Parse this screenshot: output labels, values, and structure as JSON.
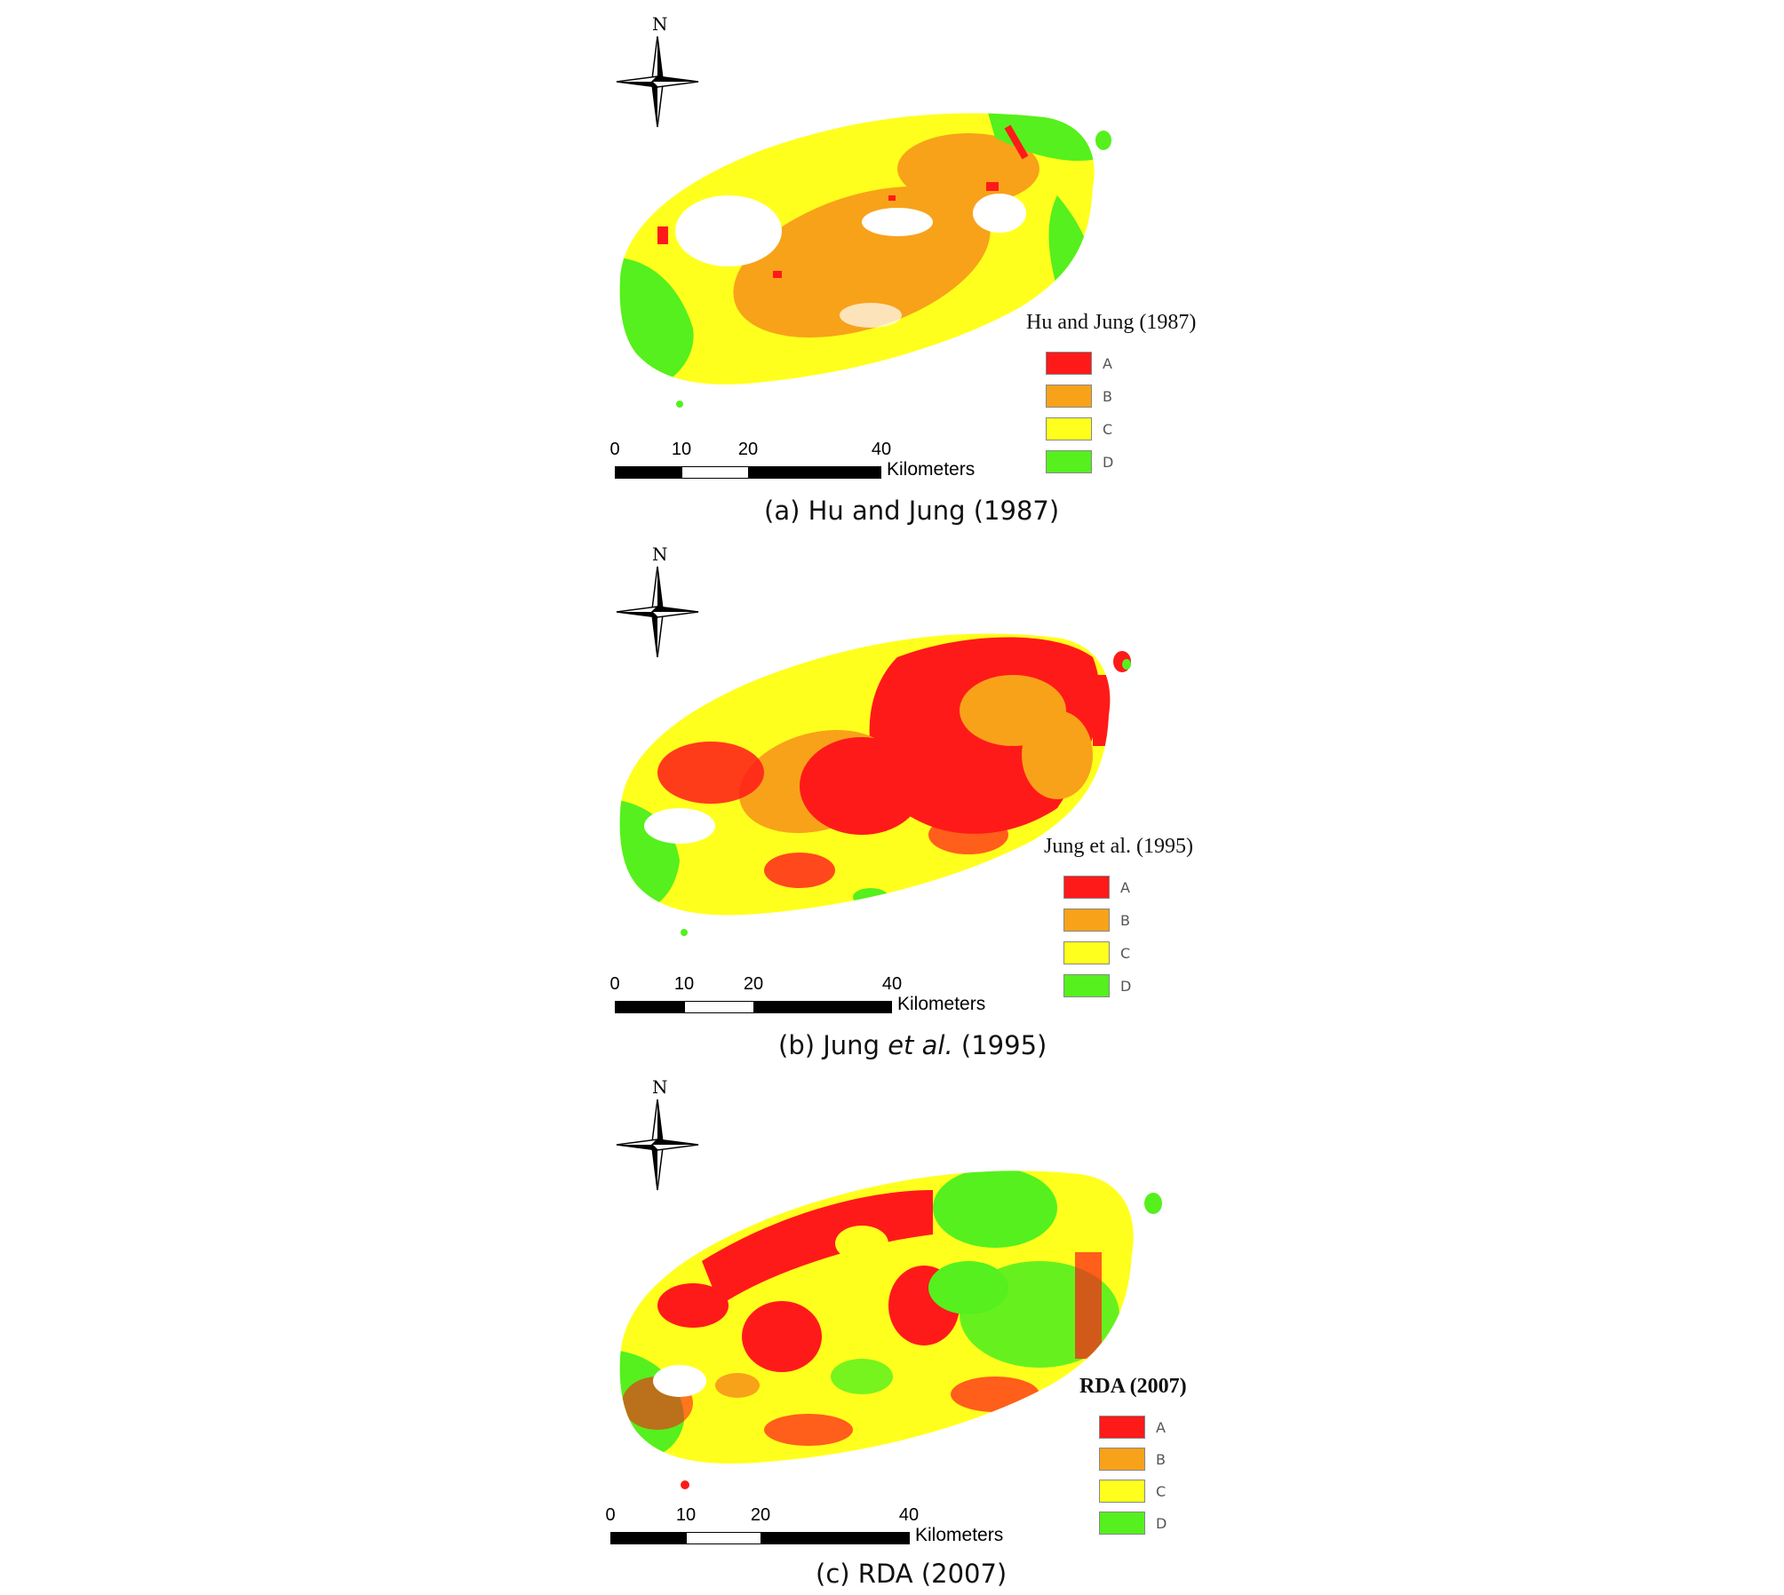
{
  "colors": {
    "A": "#ff1a1a",
    "B": "#f8a21a",
    "C": "#ffff1e",
    "D": "#55f01e"
  },
  "panels": [
    {
      "north_label": "N",
      "legend_title": "Hu and Jung (1987)",
      "legend_labels": [
        "A",
        "B",
        "C",
        "D"
      ],
      "scale_ticks": [
        "0",
        "10",
        "20",
        "40"
      ],
      "scale_unit": "Kilometers",
      "caption": {
        "prefix": "(a) Hu and Jung (1987)",
        "italic": "",
        "suffix": ""
      },
      "dominant_classes": [
        "C",
        "B",
        "D"
      ]
    },
    {
      "north_label": "N",
      "legend_title": "Jung et al. (1995)",
      "legend_labels": [
        "A",
        "B",
        "C",
        "D"
      ],
      "scale_ticks": [
        "0",
        "10",
        "20",
        "40"
      ],
      "scale_unit": "Kilometers",
      "caption": {
        "prefix": "(b) Jung ",
        "italic": "et al.",
        "suffix": " (1995)"
      },
      "dominant_classes": [
        "A",
        "C",
        "B"
      ]
    },
    {
      "north_label": "N",
      "legend_title": "RDA (2007)",
      "legend_labels": [
        "A",
        "B",
        "C",
        "D"
      ],
      "scale_ticks": [
        "0",
        "10",
        "20",
        "40"
      ],
      "scale_unit": "Kilometers",
      "caption": {
        "prefix": "(c) RDA (2007)",
        "italic": "",
        "suffix": ""
      },
      "dominant_classes": [
        "A",
        "C",
        "D"
      ]
    }
  ]
}
